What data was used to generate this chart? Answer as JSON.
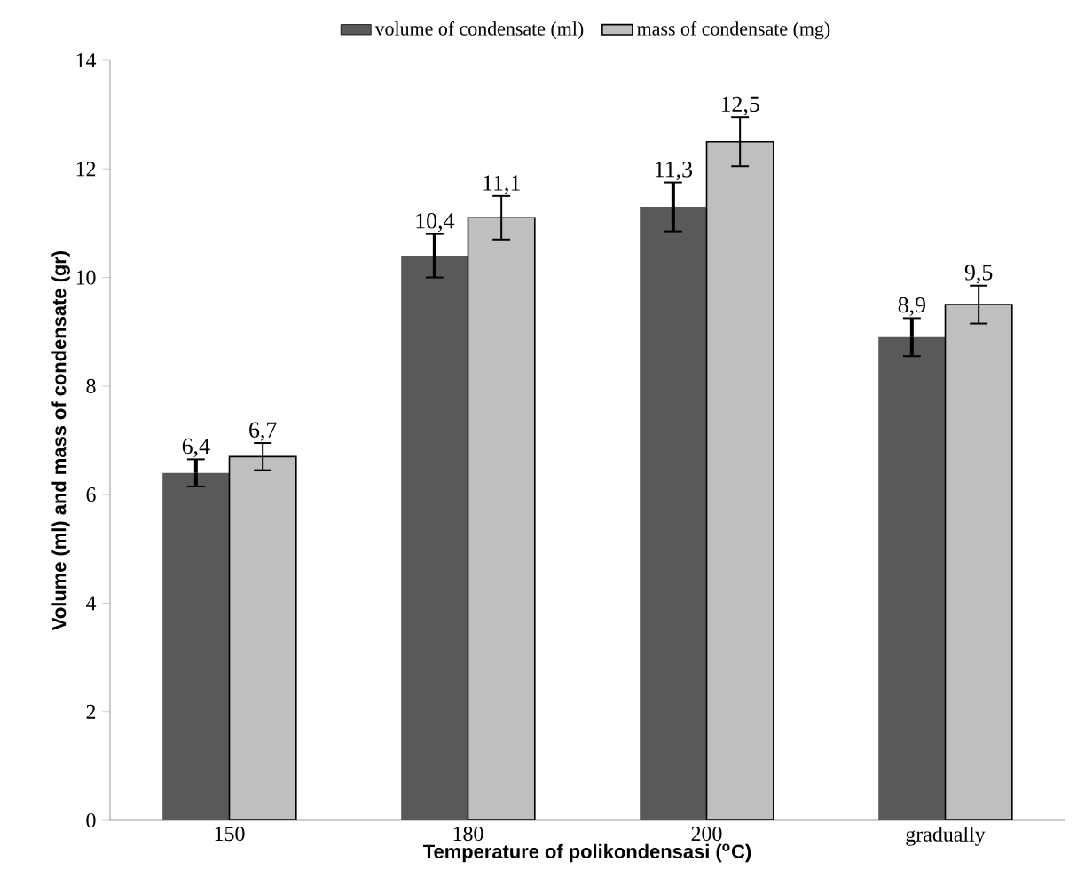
{
  "chart_data": {
    "type": "bar",
    "xlabel": "Temperature of polikondensasi ($^{o}$C)",
    "ylabel": "Volume (ml) and mass of condensate (gr)",
    "categories": [
      "150",
      "180",
      "200",
      "gradually"
    ],
    "series": [
      {
        "name": "volume of  condensate (ml)",
        "color": "#595959",
        "values": [
          6.4,
          10.4,
          11.3,
          8.9
        ],
        "errors": [
          0.25,
          0.4,
          0.45,
          0.35
        ],
        "value_labels": [
          "6,4",
          "10,4",
          "11,3",
          "8,9"
        ]
      },
      {
        "name": "mass of condensate (mg)",
        "color": "#bfbfbf",
        "values": [
          6.7,
          11.1,
          12.5,
          9.5
        ],
        "errors": [
          0.25,
          0.4,
          0.45,
          0.35
        ],
        "value_labels": [
          "6,7",
          "11,1",
          "12,5",
          "9,5"
        ]
      }
    ],
    "ylim": [
      0,
      14
    ],
    "yticks": [
      0,
      2,
      4,
      6,
      8,
      10,
      12,
      14
    ],
    "grid": false,
    "legend": "top"
  }
}
